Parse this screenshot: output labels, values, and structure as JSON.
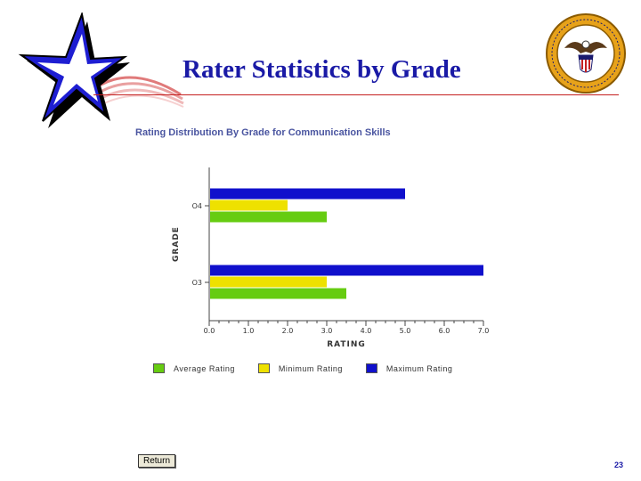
{
  "slide": {
    "title": "Rater Statistics by Grade",
    "page_number": "23",
    "return_label": "Return",
    "seal_text": "Bureau of Naval Personnel · Navy Personnel Command"
  },
  "colors": {
    "title": "#1a1aa6",
    "rule": "#c42020",
    "star_blue": "#1e1ed2",
    "average": "#66cc11",
    "minimum": "#eee100",
    "maximum": "#1010cc"
  },
  "chart_data": {
    "type": "bar",
    "orientation": "horizontal",
    "title": "Rating Distribution By Grade for Communication Skills",
    "xlabel": "RATING",
    "ylabel": "GRADE",
    "xlim": [
      0,
      7
    ],
    "xticks": [
      "0.0",
      "1.0",
      "2.0",
      "3.0",
      "4.0",
      "5.0",
      "6.0",
      "7.0"
    ],
    "categories": [
      "O3",
      "O4"
    ],
    "series": [
      {
        "name": "Average Rating",
        "color": "#66cc11",
        "values": [
          3.5,
          3.0
        ]
      },
      {
        "name": "Minimum Rating",
        "color": "#eee100",
        "values": [
          3.0,
          2.0
        ]
      },
      {
        "name": "Maximum Rating",
        "color": "#1010cc",
        "values": [
          7.0,
          5.0
        ]
      }
    ],
    "legend_position": "bottom",
    "grid": false
  }
}
